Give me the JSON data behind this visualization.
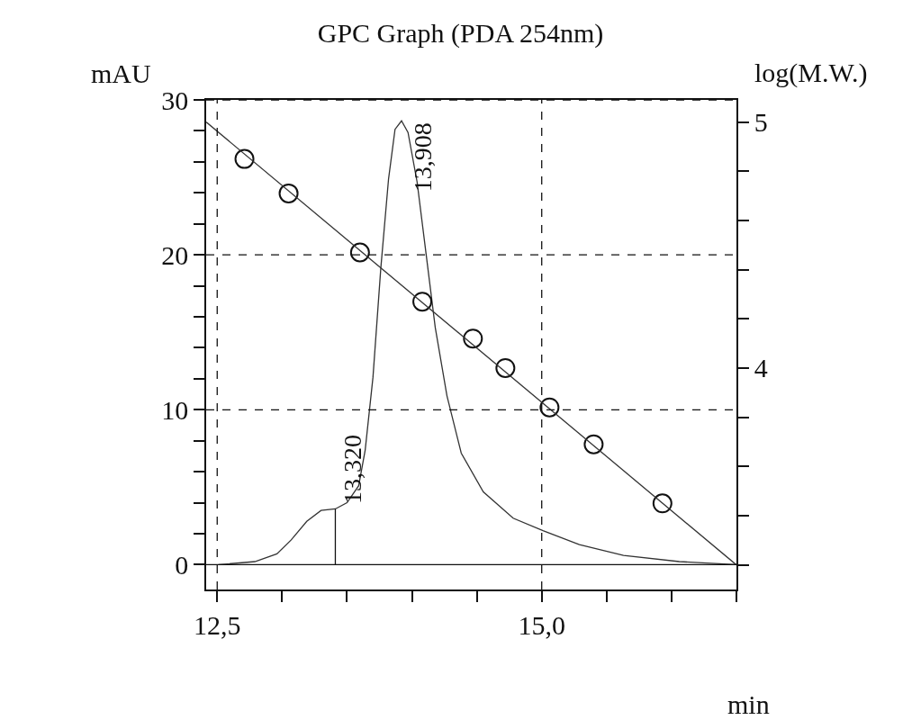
{
  "chart_data": {
    "type": "line",
    "title": "GPC Graph (PDA 254nm)",
    "xlabel": "min",
    "ylabel": "mAU",
    "y2label": "log(M.W.)",
    "series": [
      {
        "color": "#333333",
        "x": [
          12.51,
          12.79,
          12.96,
          13.07,
          13.19,
          13.3,
          13.41,
          13.5,
          13.59,
          13.64,
          13.7,
          13.76,
          13.82,
          13.87,
          13.92,
          13.97,
          14.04,
          14.11,
          14.18,
          14.27,
          14.38,
          14.55,
          14.78,
          15.01,
          15.29,
          15.63,
          16.06,
          16.5
        ],
        "values": [
          0,
          0.2,
          0.7,
          1.6,
          2.8,
          3.5,
          3.6,
          4.0,
          5.1,
          7.4,
          12.1,
          19.1,
          24.9,
          28.1,
          28.65,
          27.9,
          24.7,
          20,
          15.3,
          10.9,
          7.2,
          4.7,
          3.0,
          2.2,
          1.3,
          0.6,
          0.2,
          0
        ]
      },
      {
        "color": "#111111",
        "x": [
          13.41,
          13.41
        ],
        "values": [
          0,
          3.6
        ]
      },
      {
        "type": "scatter",
        "axis": "y2",
        "color": "#111111",
        "marker": "circle",
        "x": [
          12.71,
          13.05,
          13.6,
          14.08,
          14.47,
          14.72,
          15.06,
          15.4,
          15.93
        ],
        "values": [
          4.85,
          4.71,
          4.47,
          4.27,
          4.12,
          4.0,
          3.84,
          3.69,
          3.45
        ]
      },
      {
        "type": "line",
        "axis": "y2",
        "color": "#333333",
        "x": [
          12.415,
          16.5
        ],
        "values": [
          5.0,
          3.2
        ]
      }
    ],
    "xlim": [
      12.415,
      16.5
    ],
    "xticks": [
      {
        "value": 12.5,
        "label": "12,5"
      },
      {
        "value": 13,
        "label": null
      },
      {
        "value": 13.5,
        "label": null
      },
      {
        "value": 14,
        "label": null
      },
      {
        "value": 14.5,
        "label": null
      },
      {
        "value": 15,
        "label": "15,0"
      },
      {
        "value": 15.5,
        "label": null
      },
      {
        "value": 16,
        "label": null
      },
      {
        "value": 16.5,
        "label": null
      }
    ],
    "ylim": [
      -1.6,
      30
    ],
    "yticks": [
      0,
      {
        "value": 2,
        "label": null
      },
      {
        "value": 4,
        "label": null
      },
      {
        "value": 6,
        "label": null
      },
      {
        "value": 8,
        "label": null
      },
      10,
      {
        "value": 12,
        "label": null
      },
      {
        "value": 14,
        "label": null
      },
      {
        "value": 16,
        "label": null
      },
      {
        "value": 18,
        "label": null
      },
      20,
      {
        "value": 22,
        "label": null
      },
      {
        "value": 24,
        "label": null
      },
      {
        "value": 26,
        "label": null
      },
      {
        "value": 28,
        "label": null
      },
      30
    ],
    "y2lim": [
      3.1,
      5.09
    ],
    "y2ticks": [
      {
        "value": 3.2,
        "label": null
      },
      {
        "value": 3.4,
        "label": null
      },
      {
        "value": 3.6,
        "label": null
      },
      {
        "value": 3.8,
        "label": null
      },
      4,
      {
        "value": 4.2,
        "label": null
      },
      {
        "value": 4.4,
        "label": null
      },
      {
        "value": 4.6,
        "label": null
      },
      {
        "value": 4.8,
        "label": null
      },
      5
    ],
    "annotations": [
      {
        "text": "13,320",
        "x": 13.41,
        "y": 3.6
      },
      {
        "text": "13,908",
        "x": 13.92,
        "y": 28.65
      }
    ],
    "grid": true
  }
}
